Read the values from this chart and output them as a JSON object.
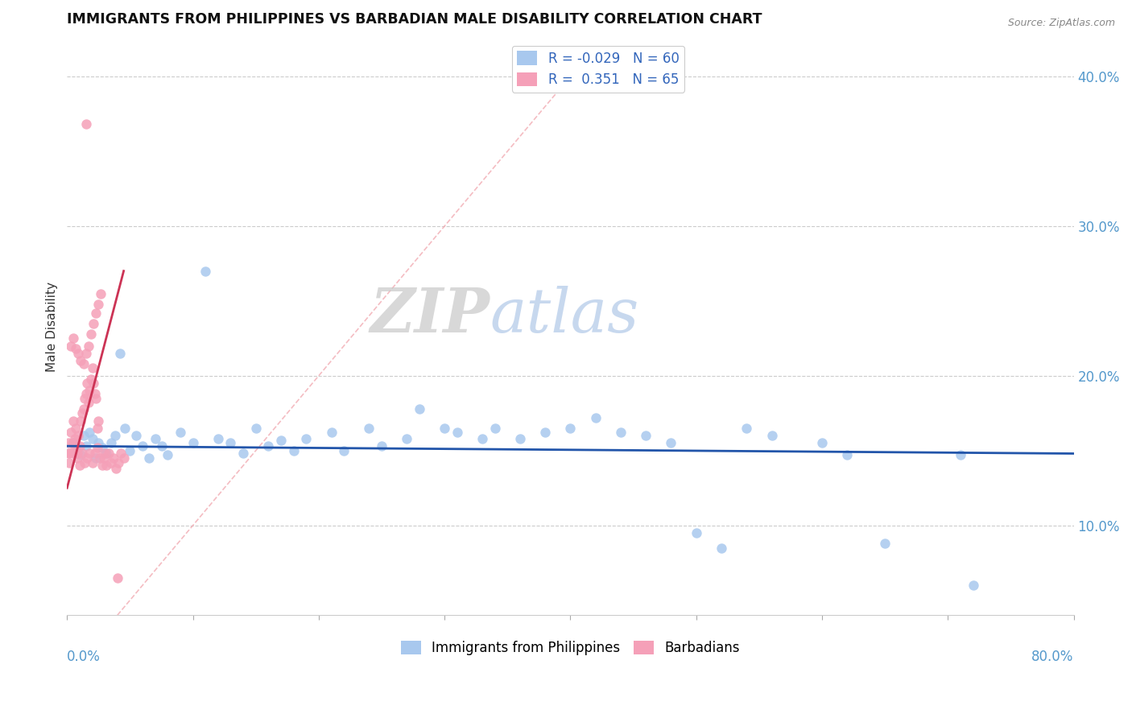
{
  "title": "IMMIGRANTS FROM PHILIPPINES VS BARBADIAN MALE DISABILITY CORRELATION CHART",
  "source": "Source: ZipAtlas.com",
  "ylabel": "Male Disability",
  "legend_bottom": [
    "Immigrants from Philippines",
    "Barbadians"
  ],
  "blue_color": "#a8c8ee",
  "pink_color": "#f5a0b8",
  "blue_line_color": "#2255aa",
  "pink_line_color": "#cc3355",
  "diag_color": "#f0b0b8",
  "watermark": "ZIPatlas",
  "xlim": [
    0.0,
    0.8
  ],
  "ylim": [
    0.04,
    0.425
  ],
  "yticks": [
    0.1,
    0.2,
    0.3,
    0.4
  ],
  "ytick_labels": [
    "10.0%",
    "20.0%",
    "30.0%",
    "40.0%"
  ],
  "xticks": [
    0.0,
    0.1,
    0.2,
    0.3,
    0.4,
    0.5,
    0.6,
    0.7,
    0.8
  ],
  "blue_r": -0.029,
  "blue_n": 60,
  "pink_r": 0.351,
  "pink_n": 65,
  "blue_scatter_x": [
    0.005,
    0.007,
    0.009,
    0.011,
    0.013,
    0.015,
    0.018,
    0.02,
    0.023,
    0.025,
    0.028,
    0.031,
    0.035,
    0.038,
    0.042,
    0.046,
    0.05,
    0.055,
    0.06,
    0.065,
    0.07,
    0.075,
    0.08,
    0.09,
    0.1,
    0.11,
    0.12,
    0.13,
    0.14,
    0.15,
    0.16,
    0.17,
    0.18,
    0.19,
    0.21,
    0.22,
    0.24,
    0.25,
    0.27,
    0.28,
    0.3,
    0.31,
    0.33,
    0.34,
    0.36,
    0.38,
    0.4,
    0.42,
    0.44,
    0.46,
    0.48,
    0.5,
    0.52,
    0.54,
    0.56,
    0.6,
    0.62,
    0.65,
    0.71,
    0.72
  ],
  "blue_scatter_y": [
    0.155,
    0.148,
    0.152,
    0.147,
    0.16,
    0.153,
    0.162,
    0.158,
    0.145,
    0.155,
    0.152,
    0.148,
    0.155,
    0.16,
    0.215,
    0.165,
    0.15,
    0.16,
    0.153,
    0.145,
    0.158,
    0.153,
    0.147,
    0.162,
    0.155,
    0.27,
    0.158,
    0.155,
    0.148,
    0.165,
    0.153,
    0.157,
    0.15,
    0.158,
    0.162,
    0.15,
    0.165,
    0.153,
    0.158,
    0.178,
    0.165,
    0.162,
    0.158,
    0.165,
    0.158,
    0.162,
    0.165,
    0.172,
    0.162,
    0.16,
    0.155,
    0.095,
    0.085,
    0.165,
    0.16,
    0.155,
    0.147,
    0.088,
    0.147,
    0.06
  ],
  "pink_scatter_x": [
    0.001,
    0.002,
    0.003,
    0.004,
    0.005,
    0.006,
    0.007,
    0.008,
    0.009,
    0.01,
    0.011,
    0.012,
    0.013,
    0.014,
    0.015,
    0.016,
    0.017,
    0.018,
    0.019,
    0.02,
    0.021,
    0.022,
    0.023,
    0.024,
    0.025,
    0.003,
    0.005,
    0.007,
    0.009,
    0.011,
    0.013,
    0.015,
    0.017,
    0.019,
    0.021,
    0.023,
    0.025,
    0.027,
    0.029,
    0.031,
    0.033,
    0.035,
    0.037,
    0.039,
    0.041,
    0.043,
    0.045,
    0.001,
    0.002,
    0.004,
    0.006,
    0.008,
    0.01,
    0.012,
    0.014,
    0.016,
    0.018,
    0.02,
    0.022,
    0.024,
    0.026,
    0.028,
    0.03,
    0.015,
    0.04
  ],
  "pink_scatter_y": [
    0.155,
    0.148,
    0.162,
    0.155,
    0.17,
    0.158,
    0.165,
    0.148,
    0.16,
    0.153,
    0.17,
    0.175,
    0.178,
    0.185,
    0.188,
    0.195,
    0.182,
    0.19,
    0.198,
    0.205,
    0.195,
    0.188,
    0.185,
    0.165,
    0.17,
    0.22,
    0.225,
    0.218,
    0.215,
    0.21,
    0.208,
    0.215,
    0.22,
    0.228,
    0.235,
    0.242,
    0.248,
    0.255,
    0.145,
    0.14,
    0.148,
    0.142,
    0.145,
    0.138,
    0.142,
    0.148,
    0.145,
    0.148,
    0.142,
    0.148,
    0.152,
    0.145,
    0.14,
    0.148,
    0.142,
    0.145,
    0.148,
    0.142,
    0.148,
    0.152,
    0.145,
    0.14,
    0.148,
    0.368,
    0.065
  ]
}
